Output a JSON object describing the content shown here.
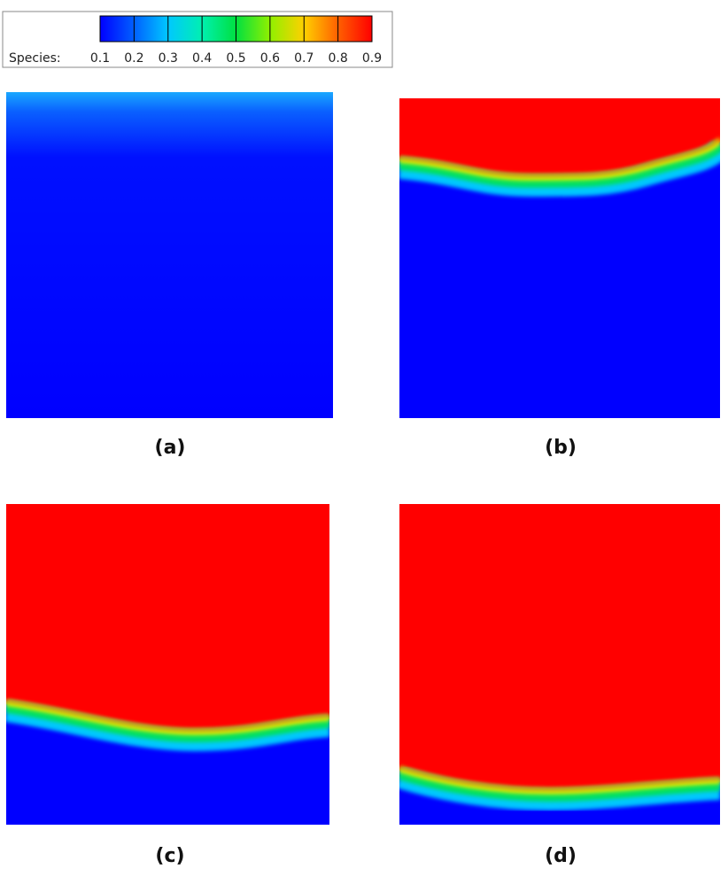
{
  "colorbar": {
    "label": "Species:",
    "ticks": [
      0.1,
      0.2,
      0.3,
      0.4,
      0.5,
      0.6,
      0.7,
      0.8,
      0.9
    ]
  },
  "panels": [
    {
      "label": "(a)"
    },
    {
      "label": "(b)"
    },
    {
      "label": "(c)"
    },
    {
      "label": "(d)"
    }
  ]
}
